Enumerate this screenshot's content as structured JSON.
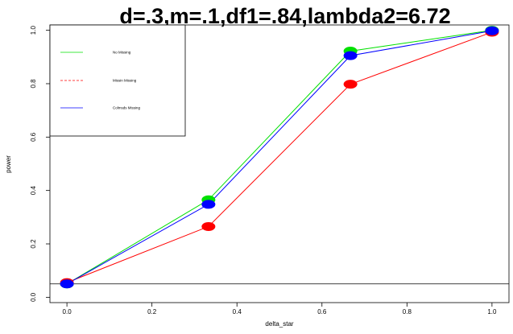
{
  "chart_data": {
    "type": "line",
    "title": "d=.3,m=.1,df1=.84,lambda2=6.72",
    "xlabel": "delta_star",
    "ylabel": "power",
    "x": [
      0,
      0.333,
      0.667,
      1
    ],
    "xlim": [
      -0.04,
      1.04
    ],
    "ylim": [
      -0.02,
      1.02
    ],
    "xticks": [
      "0.0",
      "0.2",
      "0.4",
      "0.6",
      "0.8",
      "1.0"
    ],
    "yticks": [
      "0.0",
      "0.2",
      "0.4",
      "0.6",
      "0.8",
      "1.0"
    ],
    "reference_line_y": 0.05,
    "legend": {
      "position": "top-left",
      "entries": [
        "No Missing",
        "Missin Missing",
        "Colmsds Missing"
      ]
    },
    "series": [
      {
        "name": "No Missing",
        "color": "#00e000",
        "linestyle": "solid",
        "values": [
          0.05,
          0.365,
          0.922,
          1.0
        ]
      },
      {
        "name": "Missin Missing",
        "color": "#ff0000",
        "linestyle": "dashed",
        "values": [
          0.055,
          0.265,
          0.798,
          0.993
        ]
      },
      {
        "name": "Colmsds Missing",
        "color": "#0000ff",
        "linestyle": "solid",
        "values": [
          0.05,
          0.348,
          0.905,
          0.998
        ]
      }
    ]
  }
}
